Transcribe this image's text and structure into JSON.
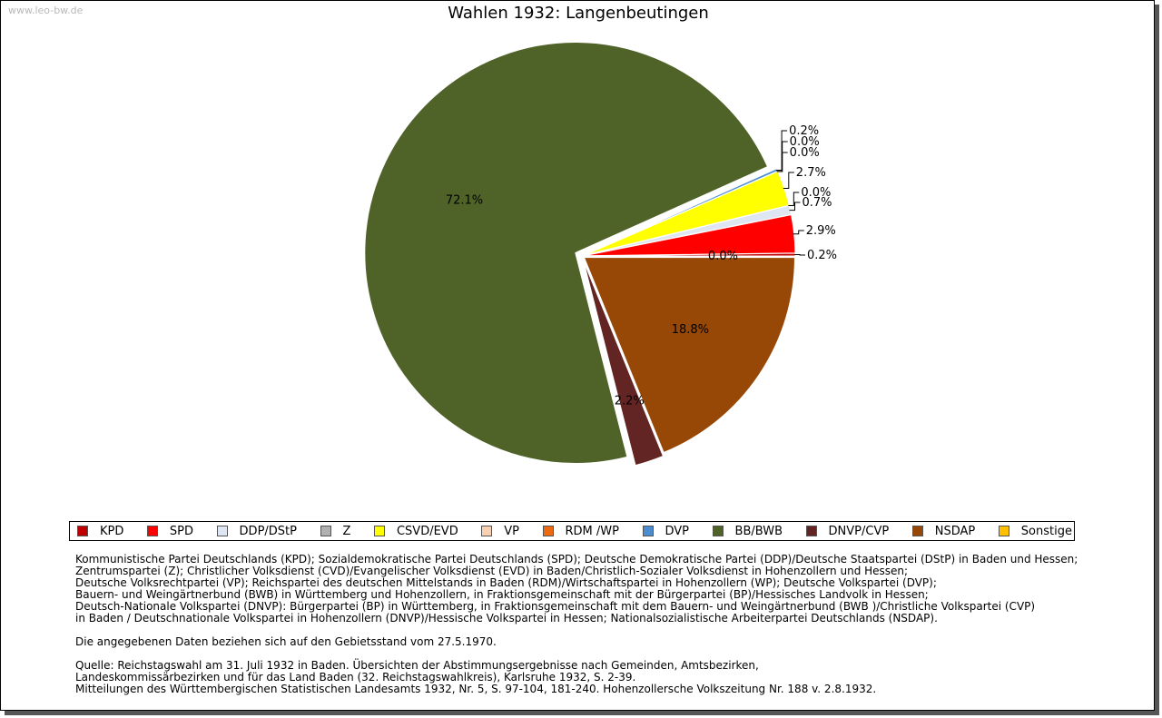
{
  "watermark": "www.leo-bw.de",
  "chart_data": {
    "type": "pie",
    "title": "Wahlen 1932: Langenbeutingen",
    "slices": [
      {
        "name": "KPD",
        "value": 0.2,
        "label": "0.2%",
        "color": "#c00000"
      },
      {
        "name": "SPD",
        "value": 2.9,
        "label": "2.9%",
        "color": "#ff0000"
      },
      {
        "name": "DDP/DStP",
        "value": 0.7,
        "label": "0.7%",
        "color": "#dde6f2"
      },
      {
        "name": "Z",
        "value": 0.0,
        "label": "0.0%",
        "color": "#b0b0b0"
      },
      {
        "name": "CSVD/EVD",
        "value": 2.7,
        "label": "2.7%",
        "color": "#ffff00"
      },
      {
        "name": "VP",
        "value": 0.0,
        "label": "0.0%",
        "color": "#fad0b4"
      },
      {
        "name": "RDM /WP",
        "value": 0.0,
        "label": "0.0%",
        "color": "#ee6a10"
      },
      {
        "name": "DVP",
        "value": 0.2,
        "label": "0.2%",
        "color": "#4b8dd0"
      },
      {
        "name": "BB/BWB",
        "value": 72.1,
        "label": "72.1%",
        "color": "#4f6228"
      },
      {
        "name": "DNVP/CVP",
        "value": 2.2,
        "label": "2.2%",
        "color": "#632523"
      },
      {
        "name": "NSDAP",
        "value": 18.8,
        "label": "18.8%",
        "color": "#974806"
      },
      {
        "name": "Sonstige",
        "value": 0.0,
        "label": "0.0%",
        "color": "#ffc000"
      }
    ],
    "legend_position": "bottom"
  },
  "notes": {
    "parties": [
      "Kommunistische Partei Deutschlands (KPD); Sozialdemokratische Partei Deutschlands (SPD); Deutsche Demokratische Partei (DDP)/Deutsche Staatspartei (DStP) in Baden und Hessen;",
      "Zentrumspartei (Z); Christlicher Volksdienst (CVD)/Evangelischer Volksdienst (EVD) in Baden/Christlich-Sozialer Volksdienst in Hohenzollern und Hessen;",
      "Deutsche Volksrechtpartei (VP); Reichspartei des deutschen Mittelstands in Baden (RDM)/Wirtschaftspartei in Hohenzollern (WP); Deutsche Volkspartei (DVP);",
      "Bauern- und Weingärtnerbund (BWB) in Württemberg und Hohenzollern, in Fraktionsgemeinschaft mit der Bürgerpartei (BP)/Hessisches Landvolk in Hessen;",
      "Deutsch-Nationale Volkspartei (DNVP): Bürgerpartei (BP) in Württemberg, in Fraktionsgemeinschaft mit dem Bauern- und Weingärtnerbund (BWB )/Christliche Volkspartei (CVP)",
      "in Baden / Deutschnationale Volkspartei in Hohenzollern (DNVP)/Hessische Volkspartei in Hessen; Nationalsozialistische Arbeiterpartei Deutschlands (NSDAP)."
    ],
    "territory": "Die angegebenen Daten beziehen sich auf den Gebietsstand vom 27.5.1970.",
    "source": [
      "Quelle: Reichstagswahl am 31. Juli 1932 in Baden. Übersichten der Abstimmungsergebnisse nach Gemeinden, Amtsbezirken,",
      "Landeskommissärbezirken und für das Land Baden (32. Reichstagswahlkreis), Karlsruhe 1932, S. 2-39.",
      "Mitteilungen des Württembergischen Statistischen Landesamts 1932, Nr. 5, S. 97-104, 181-240. Hohenzollersche Volkszeitung Nr. 188 v. 2.8.1932."
    ]
  }
}
